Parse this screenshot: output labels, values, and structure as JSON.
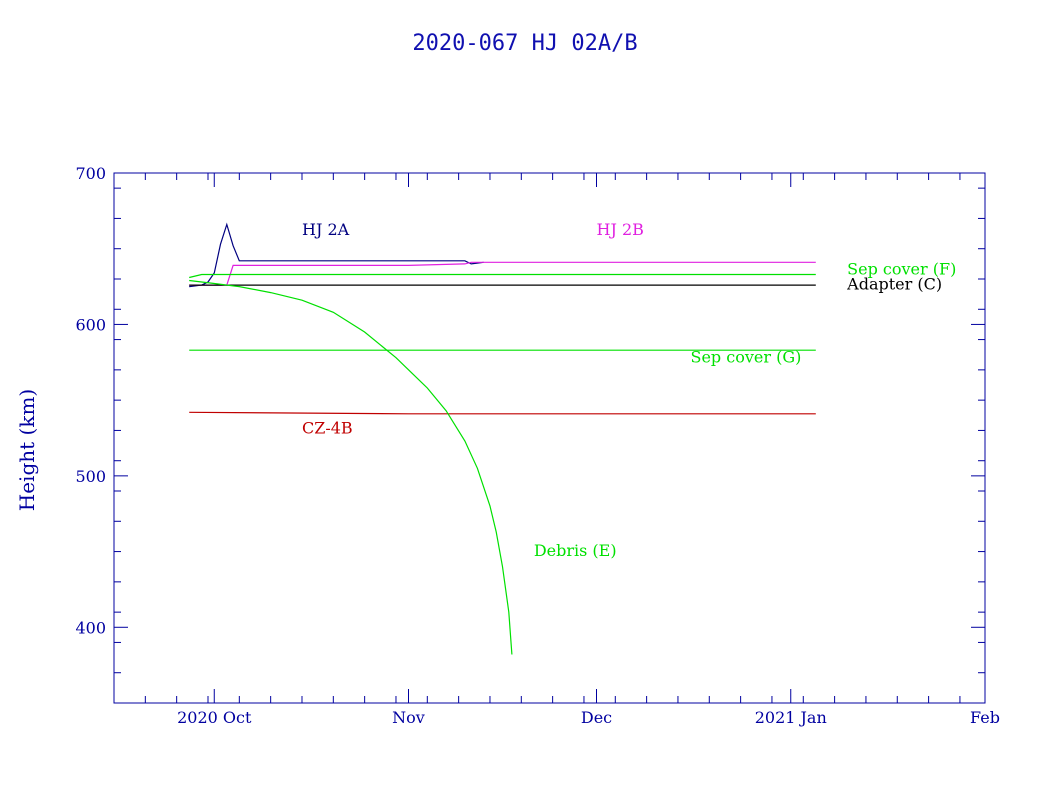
{
  "chart_data": {
    "type": "line",
    "title": "2020-067 HJ 02A/B",
    "ylabel": "Height (km)",
    "xlabel": "",
    "ylim": [
      350,
      700
    ],
    "yticks": [
      400,
      500,
      600,
      700
    ],
    "xlim": [
      "2020-09-15",
      "2021-02-01"
    ],
    "xticks": [
      {
        "label": "2020 Oct",
        "date": "2020-10-01"
      },
      {
        "label": "Nov",
        "date": "2020-11-01"
      },
      {
        "label": "Dec",
        "date": "2020-12-01"
      },
      {
        "label": "2021 Jan",
        "date": "2021-01-01"
      },
      {
        "label": "Feb",
        "date": "2021-02-01"
      }
    ],
    "grid": false,
    "colors": {
      "axes": "#0000a0",
      "title": "#1010b0",
      "hj2a": "#000080",
      "hj2b": "#e020e0",
      "green": "#00e000",
      "adapter": "#000000",
      "cz4b": "#c00000"
    },
    "series": [
      {
        "name": "HJ 2A",
        "color_key": "hj2a",
        "points": [
          [
            "2020-09-27",
            625
          ],
          [
            "2020-09-29",
            626
          ],
          [
            "2020-09-30",
            628
          ],
          [
            "2020-10-01",
            634
          ],
          [
            "2020-10-02",
            653
          ],
          [
            "2020-10-03",
            666
          ],
          [
            "2020-10-04",
            652
          ],
          [
            "2020-10-05",
            642
          ],
          [
            "2020-10-15",
            642
          ],
          [
            "2020-10-25",
            642
          ],
          [
            "2020-11-05",
            642
          ],
          [
            "2020-11-10",
            642
          ],
          [
            "2020-11-11",
            640
          ],
          [
            "2020-11-13",
            641
          ]
        ]
      },
      {
        "name": "HJ 2B",
        "color_key": "hj2b",
        "points": [
          [
            "2020-09-27",
            626
          ],
          [
            "2020-10-01",
            626
          ],
          [
            "2020-10-03",
            626
          ],
          [
            "2020-10-04",
            639
          ],
          [
            "2020-10-15",
            639
          ],
          [
            "2020-11-01",
            639
          ],
          [
            "2020-11-10",
            640
          ],
          [
            "2020-11-11",
            641
          ],
          [
            "2020-12-01",
            641
          ],
          [
            "2020-12-20",
            641
          ],
          [
            "2021-01-05",
            641
          ]
        ]
      },
      {
        "name": "Sep cover (F)",
        "color_key": "green",
        "points": [
          [
            "2020-09-27",
            631
          ],
          [
            "2020-09-29",
            633
          ],
          [
            "2020-10-15",
            633
          ],
          [
            "2020-11-01",
            633
          ],
          [
            "2020-12-01",
            633
          ],
          [
            "2021-01-05",
            633
          ]
        ]
      },
      {
        "name": "Adapter (C)",
        "color_key": "adapter",
        "points": [
          [
            "2020-09-27",
            626
          ],
          [
            "2020-10-15",
            626
          ],
          [
            "2020-11-01",
            626
          ],
          [
            "2020-12-01",
            626
          ],
          [
            "2021-01-05",
            626
          ]
        ]
      },
      {
        "name": "Sep cover (G)",
        "color_key": "green",
        "points": [
          [
            "2020-09-27",
            583
          ],
          [
            "2020-11-01",
            583
          ],
          [
            "2020-12-01",
            583
          ],
          [
            "2021-01-05",
            583
          ]
        ]
      },
      {
        "name": "CZ-4B",
        "color_key": "cz4b",
        "points": [
          [
            "2020-09-27",
            542
          ],
          [
            "2020-11-01",
            541
          ],
          [
            "2020-12-01",
            541
          ],
          [
            "2021-01-05",
            541
          ]
        ]
      },
      {
        "name": "Debris (E)",
        "color_key": "green",
        "points": [
          [
            "2020-09-27",
            629
          ],
          [
            "2020-10-01",
            627
          ],
          [
            "2020-10-05",
            625
          ],
          [
            "2020-10-10",
            621
          ],
          [
            "2020-10-15",
            616
          ],
          [
            "2020-10-20",
            608
          ],
          [
            "2020-10-25",
            595
          ],
          [
            "2020-10-30",
            578
          ],
          [
            "2020-11-04",
            558
          ],
          [
            "2020-11-07",
            543
          ],
          [
            "2020-11-10",
            523
          ],
          [
            "2020-11-12",
            505
          ],
          [
            "2020-11-14",
            480
          ],
          [
            "2020-11-15",
            463
          ],
          [
            "2020-11-16",
            440
          ],
          [
            "2020-11-17",
            410
          ],
          [
            "2020-11-17.5",
            382
          ]
        ]
      }
    ],
    "labels": [
      {
        "text": "HJ 2A",
        "color_key": "hj2a",
        "date": "2020-10-15",
        "value": 659
      },
      {
        "text": "HJ 2B",
        "color_key": "hj2b",
        "date": "2020-12-01",
        "value": 659
      },
      {
        "text": "Sep cover (F)",
        "color_key": "green",
        "date": "2021-01-10",
        "value": 633
      },
      {
        "text": "Adapter (C)",
        "color_key": "adapter",
        "date": "2021-01-10",
        "value": 623
      },
      {
        "text": "Sep cover (G)",
        "color_key": "green",
        "date": "2020-12-16",
        "value": 575
      },
      {
        "text": "CZ-4B",
        "color_key": "cz4b",
        "date": "2020-10-15",
        "value": 528
      },
      {
        "text": "Debris (E)",
        "color_key": "green",
        "date": "2020-11-21",
        "value": 447
      }
    ]
  }
}
